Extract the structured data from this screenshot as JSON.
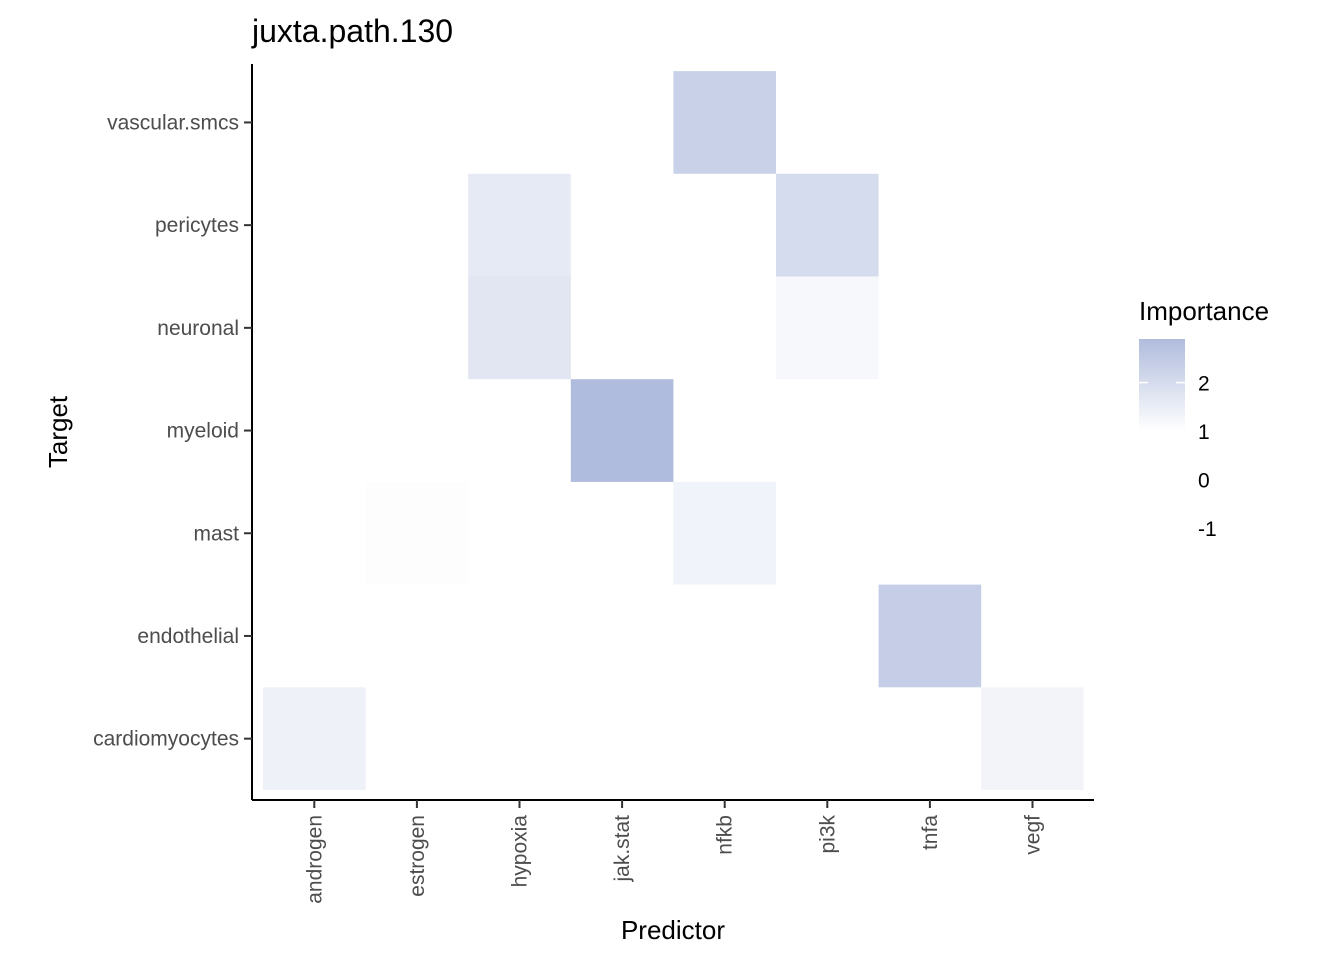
{
  "chart_data": {
    "type": "heatmap",
    "title": "juxta.path.130",
    "xlabel": "Predictor",
    "ylabel": "Target",
    "x_categories": [
      "androgen",
      "estrogen",
      "hypoxia",
      "jak.stat",
      "nfkb",
      "pi3k",
      "tnfa",
      "vegf"
    ],
    "y_categories": [
      "cardiomyocytes",
      "endothelial",
      "mast",
      "myeloid",
      "neuronal",
      "pericytes",
      "vascular.smcs"
    ],
    "cells": [
      {
        "x": "nfkb",
        "y": "vascular.smcs",
        "value": 2.3
      },
      {
        "x": "hypoxia",
        "y": "pericytes",
        "value": 1.6
      },
      {
        "x": "pi3k",
        "y": "pericytes",
        "value": 2.0
      },
      {
        "x": "hypoxia",
        "y": "neuronal",
        "value": 1.7
      },
      {
        "x": "pi3k",
        "y": "neuronal",
        "value": 1.2
      },
      {
        "x": "jak.stat",
        "y": "myeloid",
        "value": 2.9
      },
      {
        "x": "estrogen",
        "y": "mast",
        "value": 1.05
      },
      {
        "x": "nfkb",
        "y": "mast",
        "value": 1.35
      },
      {
        "x": "tnfa",
        "y": "endothelial",
        "value": 2.4
      },
      {
        "x": "androgen",
        "y": "cardiomyocytes",
        "value": 1.4
      },
      {
        "x": "vegf",
        "y": "cardiomyocytes",
        "value": 1.3
      }
    ],
    "legend": {
      "title": "Importance",
      "ticks": [
        2,
        1,
        0,
        -1
      ],
      "color_low": "#ffffff",
      "color_high": "#b0bcdd",
      "low_value": 1,
      "high_value": 2.9
    },
    "grid": false,
    "legend_position": "right"
  }
}
